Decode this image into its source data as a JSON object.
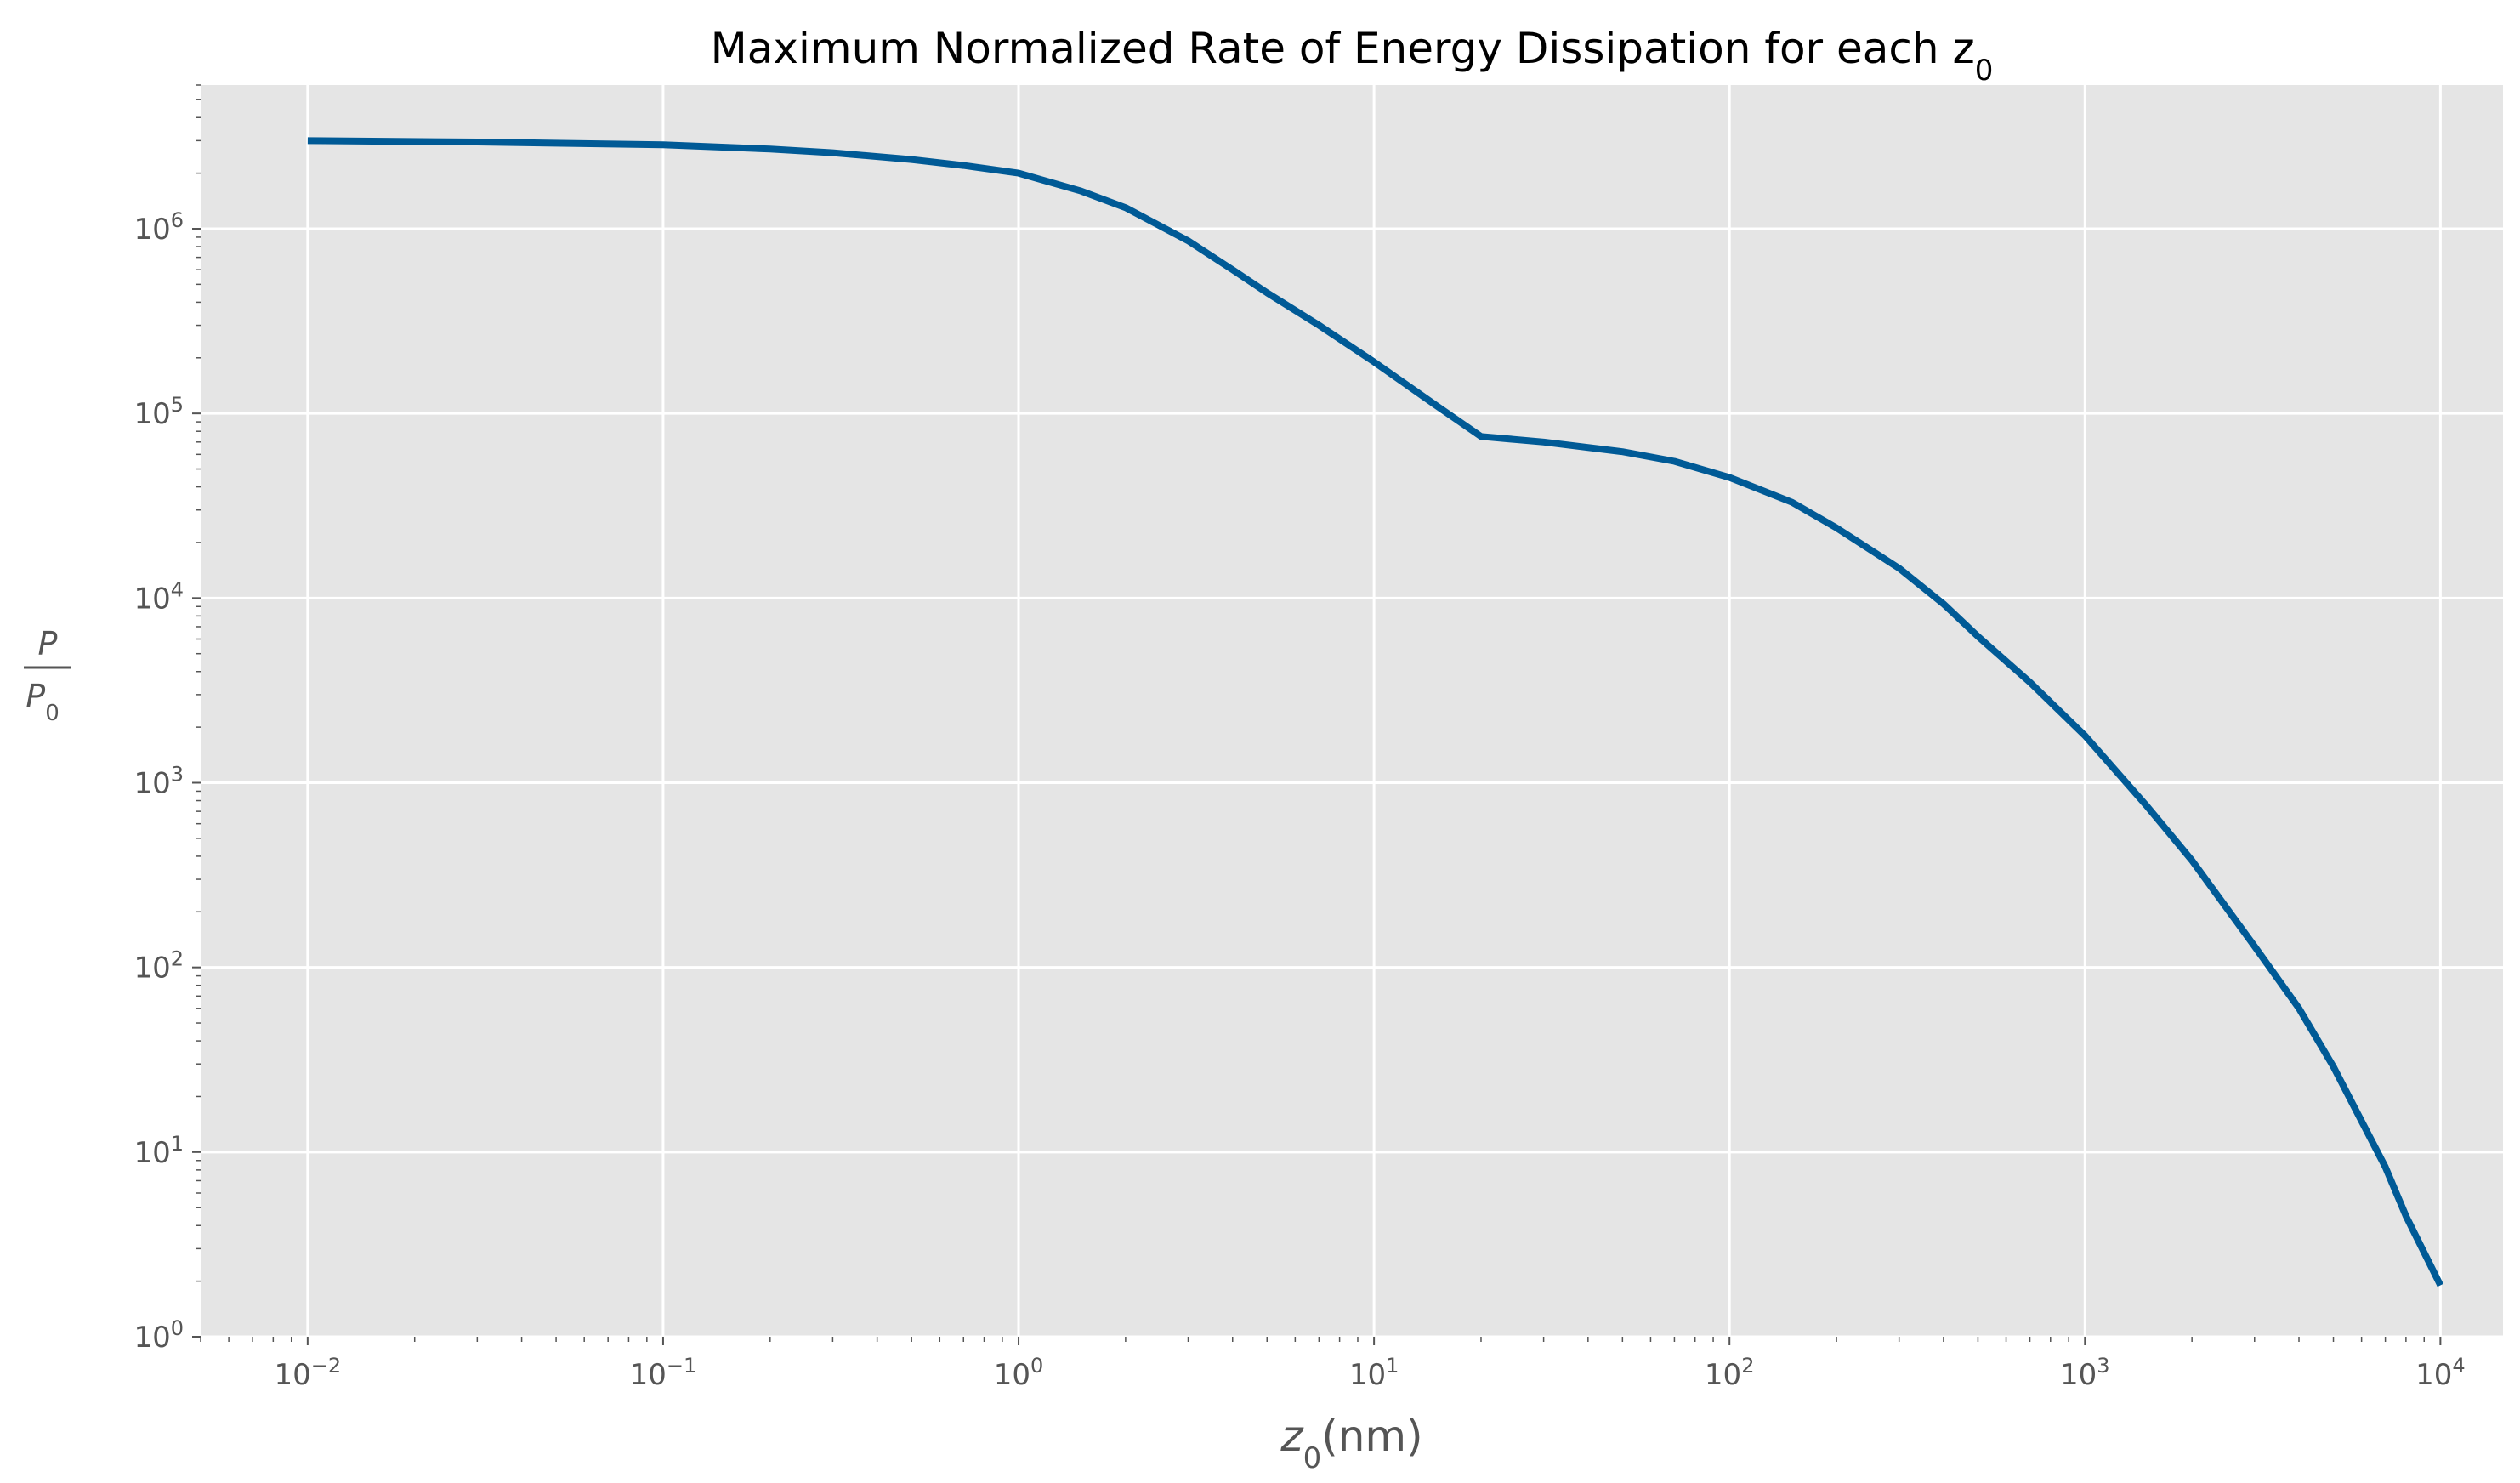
{
  "chart_data": {
    "type": "line",
    "title": "Maximum Normalized Rate of Energy Dissipation for each z",
    "title_sub": "0",
    "xlabel": "z",
    "xlabel_sub": "0",
    "xlabel_unit": "(nm)",
    "ylabel_num": "P",
    "ylabel_den": "P",
    "ylabel_den_sub": "0",
    "x_scale": "log",
    "y_scale": "log",
    "xlim": [
      0.005,
      15000
    ],
    "ylim": [
      1,
      6000000
    ],
    "grid": true,
    "colors": {
      "background": "#e5e5e5",
      "grid": "#ffffff",
      "line": "#005a96",
      "text": "#555555"
    },
    "x_ticks": [
      {
        "value": 0.01,
        "base": "10",
        "exp": "−2"
      },
      {
        "value": 0.1,
        "base": "10",
        "exp": "−1"
      },
      {
        "value": 1,
        "base": "10",
        "exp": "0"
      },
      {
        "value": 10,
        "base": "10",
        "exp": "1"
      },
      {
        "value": 100,
        "base": "10",
        "exp": "2"
      },
      {
        "value": 1000,
        "base": "10",
        "exp": "3"
      },
      {
        "value": 10000,
        "base": "10",
        "exp": "4"
      }
    ],
    "y_ticks": [
      {
        "value": 1,
        "base": "10",
        "exp": "0"
      },
      {
        "value": 10,
        "base": "10",
        "exp": "1"
      },
      {
        "value": 100,
        "base": "10",
        "exp": "2"
      },
      {
        "value": 1000,
        "base": "10",
        "exp": "3"
      },
      {
        "value": 10000,
        "base": "10",
        "exp": "4"
      },
      {
        "value": 100000,
        "base": "10",
        "exp": "5"
      },
      {
        "value": 1000000,
        "base": "10",
        "exp": "6"
      }
    ],
    "series": [
      {
        "x": [
          0.01,
          0.03,
          0.1,
          0.2,
          0.3,
          0.5,
          0.7,
          1,
          1.5,
          2,
          3,
          4,
          5,
          7,
          10,
          15,
          20,
          30,
          50,
          70,
          100,
          150,
          200,
          300,
          400,
          500,
          700,
          1000,
          1500,
          2000,
          3000,
          4000,
          5000,
          7000,
          8000,
          10000
        ],
        "y": [
          3000000,
          2950000,
          2850000,
          2700000,
          2580000,
          2370000,
          2200000,
          2000000,
          1600000,
          1300000,
          860000,
          600000,
          450000,
          300000,
          190000,
          110000,
          75000,
          70000,
          62000,
          55000,
          45000,
          33000,
          24000,
          14500,
          9300,
          6200,
          3500,
          1800,
          740,
          380,
          130,
          60,
          29,
          8.3,
          4.5,
          1.9
        ]
      }
    ]
  }
}
